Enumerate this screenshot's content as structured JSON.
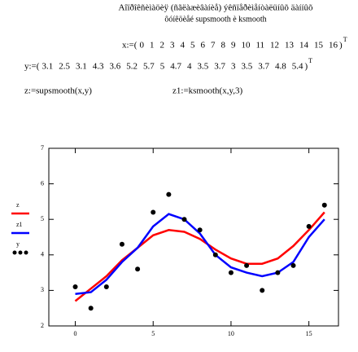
{
  "header": {
    "title": "Aîïðîêñèìàöèÿ (ñãëàæèâàíèå) ýêñïåðèìåíòàëüíûõ äàííûõ",
    "subtitle": "ôóíêöèåé supsmooth è ksmooth"
  },
  "definitions": {
    "x_vector": {
      "label": "x:=(",
      "values": [
        0,
        1,
        2,
        3,
        4,
        5,
        6,
        7,
        8,
        9,
        10,
        11,
        12,
        13,
        14,
        15,
        16
      ],
      "close": ")",
      "transpose": "T"
    },
    "y_vector": {
      "label": "y:=(",
      "values": [
        3.1,
        2.5,
        3.1,
        4.3,
        3.6,
        5.2,
        5.7,
        5,
        4.7,
        4,
        3.5,
        3.7,
        3,
        3.5,
        3.7,
        4.8,
        5.4
      ],
      "close": ")",
      "transpose": "T"
    },
    "z_def": "z:=supsmooth(x,y)",
    "z1_def": "z1:=ksmooth(x,y,3)"
  },
  "chart_data": {
    "type": "line",
    "x": [
      0,
      1,
      2,
      3,
      4,
      5,
      6,
      7,
      8,
      9,
      10,
      11,
      12,
      13,
      14,
      15,
      16
    ],
    "series": [
      {
        "name": "z",
        "color": "#ff0000",
        "values": [
          2.7,
          3.05,
          3.4,
          3.85,
          4.2,
          4.55,
          4.7,
          4.65,
          4.45,
          4.15,
          3.9,
          3.75,
          3.75,
          3.9,
          4.25,
          4.7,
          5.2
        ]
      },
      {
        "name": "z1",
        "color": "#0000ff",
        "values": [
          2.9,
          2.95,
          3.3,
          3.8,
          4.2,
          4.8,
          5.15,
          5.0,
          4.6,
          4.0,
          3.65,
          3.5,
          3.4,
          3.5,
          3.8,
          4.5,
          5.0
        ]
      },
      {
        "name": "y",
        "color": "#000000",
        "marker": "dot",
        "values": [
          3.1,
          2.5,
          3.1,
          4.3,
          3.6,
          5.2,
          5.7,
          5,
          4.7,
          4,
          3.5,
          3.7,
          3,
          3.5,
          3.7,
          4.8,
          5.4
        ]
      }
    ],
    "xlim": [
      -1.7,
      16.9
    ],
    "xticks": [
      0,
      5,
      10,
      15
    ],
    "ylim": [
      2,
      7
    ],
    "yticks": [
      2,
      3,
      4,
      5,
      6,
      7
    ],
    "grid": false,
    "legend": "left"
  }
}
